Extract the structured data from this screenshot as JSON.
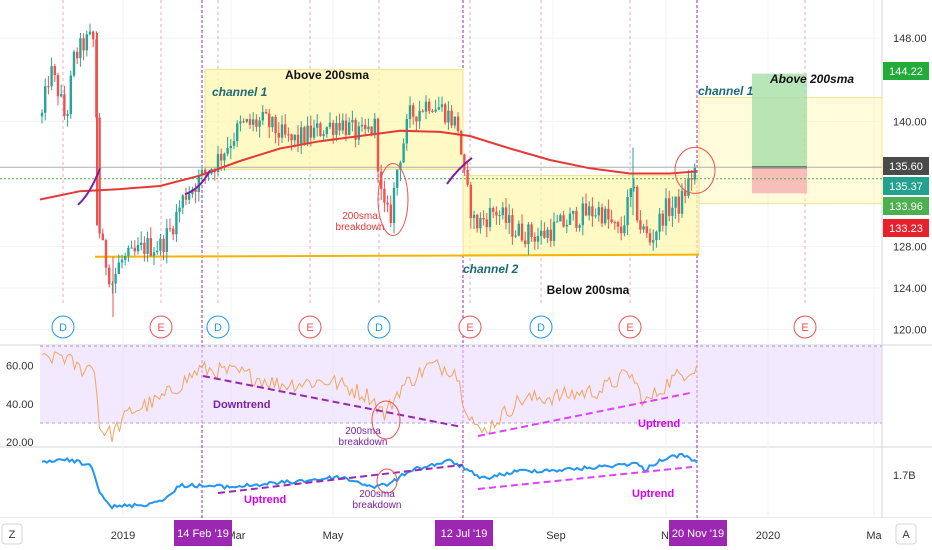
{
  "chart_data": [
    {
      "type": "candlestick",
      "panel": "price",
      "overlays": [
        "200sma"
      ],
      "ylim": [
        119,
        151
      ],
      "y_ticks": [
        "148.00",
        "140.00",
        "135.60",
        "128.00",
        "124.00",
        "120.00"
      ],
      "price_badges": [
        {
          "value": "144.22",
          "color": "#22ab39"
        },
        {
          "value": "135.60",
          "color": "#4a4a4a"
        },
        {
          "value": "135.37",
          "color": "#23a18f"
        },
        {
          "value": "133.96",
          "color": "#4caf50"
        },
        {
          "value": "133.23",
          "color": "#e8202c"
        }
      ],
      "annotations": {
        "above_sma_left": "Above 200sma",
        "channel_1_left": "channel 1",
        "breakdown": "200sma\nbreakdown",
        "channel_2": "channel 2",
        "below_sma": "Below 200sma",
        "channel_1_right": "channel 1",
        "above_sma_right": "Above 200sma"
      },
      "event_markers": [
        "D",
        "E",
        "D",
        "E",
        "D",
        "E",
        "D",
        "E",
        "E"
      ]
    },
    {
      "type": "line",
      "panel": "rsi",
      "ylim": [
        18,
        68
      ],
      "y_ticks": [
        "60.00",
        "40.00",
        "20.00"
      ],
      "annotations": {
        "downtrend": "Downtrend",
        "breakdown": "200sma\nbreakdown",
        "uptrend": "Uptrend"
      }
    },
    {
      "type": "line",
      "panel": "lower_indicator",
      "y_ticks": [
        "1.7B"
      ],
      "annotations": {
        "uptrend_left": "Uptrend",
        "breakdown": "200sma\nbreakdown",
        "uptrend_right": "Uptrend"
      }
    }
  ],
  "x_axis": {
    "ticks": [
      "2019",
      "Mar",
      "May",
      "Sep",
      "No",
      "2020",
      "Ma"
    ],
    "highlights": [
      "14 Feb '19",
      "12 Jul '19",
      "20 Nov '19"
    ]
  },
  "corner_buttons": {
    "left": "Z",
    "right": "A"
  },
  "colors": {
    "up": "#26a69a",
    "down": "#ef5350",
    "sma": "#e53935",
    "channel_fill": "#fff7b0",
    "support": "#f5b400",
    "rsi": "#f4a460",
    "rsi_band": "#e9dafd",
    "indicator": "#2196f3",
    "trend_purple": "#9c27b0",
    "trend_magenta": "#e040fb",
    "marker_blue": "#2196f3",
    "marker_red": "#ef5350",
    "highlight_label": "#9c27b0"
  }
}
